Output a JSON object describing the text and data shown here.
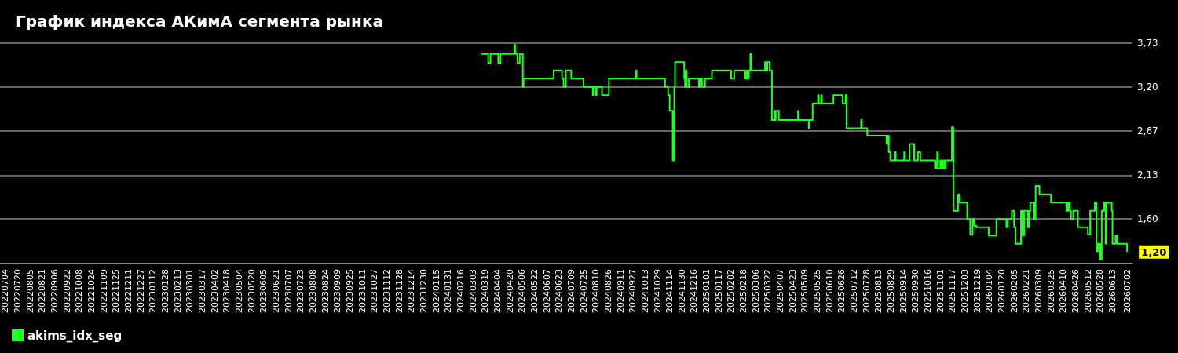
{
  "chart_data": {
    "type": "step",
    "title": "График индекса АКимА сегмента рынка",
    "xlim": [
      "2022-06-27",
      "2026-07-09"
    ],
    "xticks": [
      {
        "value": "2022-07-04",
        "label": "20220704"
      },
      {
        "value": "2022-07-20",
        "label": "20220720"
      },
      {
        "value": "2022-08-05",
        "label": "20220805"
      },
      {
        "value": "2022-08-21",
        "label": "20220821"
      },
      {
        "value": "2022-09-06",
        "label": "20220906"
      },
      {
        "value": "2022-09-22",
        "label": "20220922"
      },
      {
        "value": "2022-10-08",
        "label": "20221008"
      },
      {
        "value": "2022-10-24",
        "label": "20221024"
      },
      {
        "value": "2022-11-09",
        "label": "20221109"
      },
      {
        "value": "2022-11-25",
        "label": "20221125"
      },
      {
        "value": "2022-12-11",
        "label": "20221211"
      },
      {
        "value": "2022-12-27",
        "label": "20221227"
      },
      {
        "value": "2023-01-12",
        "label": "20230112"
      },
      {
        "value": "2023-01-28",
        "label": "20230128"
      },
      {
        "value": "2023-02-13",
        "label": "20230213"
      },
      {
        "value": "2023-03-01",
        "label": "20230301"
      },
      {
        "value": "2023-03-17",
        "label": "20230317"
      },
      {
        "value": "2023-04-02",
        "label": "20230402"
      },
      {
        "value": "2023-04-18",
        "label": "20230418"
      },
      {
        "value": "2023-05-04",
        "label": "20230504"
      },
      {
        "value": "2023-05-20",
        "label": "20230520"
      },
      {
        "value": "2023-06-05",
        "label": "20230605"
      },
      {
        "value": "2023-06-21",
        "label": "20230621"
      },
      {
        "value": "2023-07-07",
        "label": "20230707"
      },
      {
        "value": "2023-07-23",
        "label": "20230723"
      },
      {
        "value": "2023-08-08",
        "label": "20230808"
      },
      {
        "value": "2023-08-24",
        "label": "20230824"
      },
      {
        "value": "2023-09-09",
        "label": "20230909"
      },
      {
        "value": "2023-09-25",
        "label": "20230925"
      },
      {
        "value": "2023-10-11",
        "label": "20231011"
      },
      {
        "value": "2023-10-27",
        "label": "20231027"
      },
      {
        "value": "2023-11-12",
        "label": "20231112"
      },
      {
        "value": "2023-11-28",
        "label": "20231128"
      },
      {
        "value": "2023-12-14",
        "label": "20231214"
      },
      {
        "value": "2023-12-30",
        "label": "20231230"
      },
      {
        "value": "2024-01-15",
        "label": "20240115"
      },
      {
        "value": "2024-01-31",
        "label": "20240131"
      },
      {
        "value": "2024-02-16",
        "label": "20240216"
      },
      {
        "value": "2024-03-03",
        "label": "20240303"
      },
      {
        "value": "2024-03-19",
        "label": "20240319"
      },
      {
        "value": "2024-04-04",
        "label": "20240404"
      },
      {
        "value": "2024-04-20",
        "label": "20240420"
      },
      {
        "value": "2024-05-06",
        "label": "20240506"
      },
      {
        "value": "2024-05-22",
        "label": "20240522"
      },
      {
        "value": "2024-06-07",
        "label": "20240607"
      },
      {
        "value": "2024-06-23",
        "label": "20240623"
      },
      {
        "value": "2024-07-09",
        "label": "20240709"
      },
      {
        "value": "2024-07-25",
        "label": "20240725"
      },
      {
        "value": "2024-08-10",
        "label": "20240810"
      },
      {
        "value": "2024-08-26",
        "label": "20240826"
      },
      {
        "value": "2024-09-11",
        "label": "20240911"
      },
      {
        "value": "2024-09-27",
        "label": "20240927"
      },
      {
        "value": "2024-10-13",
        "label": "20241013"
      },
      {
        "value": "2024-10-29",
        "label": "20241029"
      },
      {
        "value": "2024-11-14",
        "label": "20241114"
      },
      {
        "value": "2024-11-30",
        "label": "20241130"
      },
      {
        "value": "2024-12-16",
        "label": "20241216"
      },
      {
        "value": "2025-01-01",
        "label": "20250101"
      },
      {
        "value": "2025-01-17",
        "label": "20250117"
      },
      {
        "value": "2025-02-02",
        "label": "20250202"
      },
      {
        "value": "2025-02-18",
        "label": "20250218"
      },
      {
        "value": "2025-03-06",
        "label": "20250306"
      },
      {
        "value": "2025-03-22",
        "label": "20250322"
      },
      {
        "value": "2025-04-07",
        "label": "20250407"
      },
      {
        "value": "2025-04-23",
        "label": "20250423"
      },
      {
        "value": "2025-05-09",
        "label": "20250509"
      },
      {
        "value": "2025-05-25",
        "label": "20250525"
      },
      {
        "value": "2025-06-10",
        "label": "20250610"
      },
      {
        "value": "2025-06-26",
        "label": "20250626"
      },
      {
        "value": "2025-07-12",
        "label": "20250712"
      },
      {
        "value": "2025-07-28",
        "label": "20250728"
      },
      {
        "value": "2025-08-13",
        "label": "20250813"
      },
      {
        "value": "2025-08-29",
        "label": "20250829"
      },
      {
        "value": "2025-09-14",
        "label": "20250914"
      },
      {
        "value": "2025-09-30",
        "label": "20250930"
      },
      {
        "value": "2025-10-16",
        "label": "20251016"
      },
      {
        "value": "2025-11-01",
        "label": "20251101"
      },
      {
        "value": "2025-11-17",
        "label": "20251117"
      },
      {
        "value": "2025-12-03",
        "label": "20251203"
      },
      {
        "value": "2025-12-19",
        "label": "20251219"
      },
      {
        "value": "2026-01-04",
        "label": "20260104"
      },
      {
        "value": "2026-01-20",
        "label": "20260120"
      },
      {
        "value": "2026-02-05",
        "label": "20260205"
      },
      {
        "value": "2026-02-21",
        "label": "20260221"
      },
      {
        "value": "2026-03-09",
        "label": "20260309"
      },
      {
        "value": "2026-03-25",
        "label": "20260325"
      },
      {
        "value": "2026-04-10",
        "label": "20260410"
      },
      {
        "value": "2026-04-26",
        "label": "20260426"
      },
      {
        "value": "2026-05-12",
        "label": "20260512"
      },
      {
        "value": "2026-05-28",
        "label": "20260528"
      },
      {
        "value": "2026-06-13",
        "label": "20260613"
      },
      {
        "value": "2026-07-02",
        "label": "20260702"
      }
    ],
    "ylim": [
      1.07,
      3.73
    ],
    "yticks": [
      {
        "value": 1.6,
        "label": "1,60"
      },
      {
        "value": 2.13,
        "label": "2,13"
      },
      {
        "value": 2.67,
        "label": "2,67"
      },
      {
        "value": 3.2,
        "label": "3,20"
      },
      {
        "value": 3.73,
        "label": "3,73"
      }
    ],
    "grid": "y",
    "legend": "bottom left",
    "marker": "none",
    "line_style": "solid",
    "annotations": [
      {
        "text": "1,20",
        "x": "2026-07-02",
        "y": 1.2
      }
    ],
    "series": [
      {
        "name": "akims_idx_seg",
        "color": "#22ff22",
        "x": [
          "2024-03-14",
          "2024-03-23",
          "2024-03-26",
          "2024-04-05",
          "2024-04-08",
          "2024-04-26",
          "2024-04-27",
          "2024-04-30",
          "2024-05-03",
          "2024-05-07",
          "2024-05-08",
          "2024-06-16",
          "2024-06-27",
          "2024-06-29",
          "2024-07-02",
          "2024-07-09",
          "2024-07-25",
          "2024-08-06",
          "2024-08-07",
          "2024-08-10",
          "2024-08-11",
          "2024-08-18",
          "2024-08-27",
          "2024-10-01",
          "2024-10-02",
          "2024-11-08",
          "2024-11-12",
          "2024-11-14",
          "2024-11-18",
          "2024-11-20",
          "2024-11-21",
          "2024-12-03",
          "2024-12-04",
          "2024-12-05",
          "2024-12-06",
          "2024-12-09",
          "2024-12-22",
          "2024-12-24",
          "2024-12-26",
          "2024-12-30",
          "2025-01-08",
          "2025-02-02",
          "2025-02-06",
          "2025-02-20",
          "2025-02-22",
          "2025-02-23",
          "2025-02-25",
          "2025-02-27",
          "2025-02-28",
          "2025-03-18",
          "2025-03-20",
          "2025-03-21",
          "2025-03-24",
          "2025-03-27",
          "2025-03-30",
          "2025-03-31",
          "2025-04-01",
          "2025-04-05",
          "2025-04-30",
          "2025-05-01",
          "2025-05-14",
          "2025-05-15",
          "2025-05-19",
          "2025-05-26",
          "2025-05-27",
          "2025-05-30",
          "2025-05-31",
          "2025-06-15",
          "2025-06-27",
          "2025-07-01",
          "2025-07-02",
          "2025-07-21",
          "2025-07-22",
          "2025-07-29",
          "2025-08-23",
          "2025-08-25",
          "2025-08-26",
          "2025-08-28",
          "2025-09-03",
          "2025-09-04",
          "2025-09-15",
          "2025-09-16",
          "2025-09-22",
          "2025-09-28",
          "2025-10-03",
          "2025-10-06",
          "2025-10-25",
          "2025-10-27",
          "2025-10-28",
          "2025-10-29",
          "2025-11-01",
          "2025-11-03",
          "2025-11-05",
          "2025-11-07",
          "2025-11-08",
          "2025-11-16",
          "2025-11-18",
          "2025-11-24",
          "2025-11-26",
          "2025-12-06",
          "2025-12-10",
          "2025-12-13",
          "2025-12-15",
          "2025-12-18",
          "2026-01-03",
          "2026-01-13",
          "2026-01-26",
          "2026-01-28",
          "2026-02-02",
          "2026-02-05",
          "2026-02-07",
          "2026-02-14",
          "2026-02-16",
          "2026-02-18",
          "2026-02-23",
          "2026-02-25",
          "2026-02-26",
          "2026-03-03",
          "2026-03-05",
          "2026-03-10",
          "2026-03-25",
          "2026-04-14",
          "2026-04-16",
          "2026-04-18",
          "2026-04-20",
          "2026-04-23",
          "2026-04-29",
          "2026-05-12",
          "2026-05-15",
          "2026-05-21",
          "2026-05-23",
          "2026-05-25",
          "2026-05-28",
          "2026-05-30",
          "2026-06-02",
          "2026-06-04",
          "2026-06-05",
          "2026-06-12",
          "2026-06-13",
          "2026-06-17",
          "2026-06-19",
          "2026-07-02"
        ],
        "values": [
          3.6,
          3.49,
          3.6,
          3.49,
          3.6,
          3.71,
          3.6,
          3.49,
          3.6,
          3.2,
          3.3,
          3.4,
          3.3,
          3.2,
          3.4,
          3.3,
          3.2,
          3.1,
          3.2,
          3.1,
          3.2,
          3.1,
          3.3,
          3.4,
          3.3,
          3.2,
          3.1,
          2.91,
          2.31,
          3.2,
          3.5,
          3.3,
          3.2,
          3.4,
          3.2,
          3.3,
          3.2,
          3.3,
          3.2,
          3.3,
          3.4,
          3.3,
          3.4,
          3.3,
          3.4,
          3.3,
          3.4,
          3.6,
          3.4,
          3.5,
          3.4,
          3.5,
          3.4,
          2.8,
          2.91,
          2.8,
          2.91,
          2.8,
          2.91,
          2.8,
          2.7,
          2.8,
          3.0,
          3.1,
          3.0,
          3.1,
          3.0,
          3.1,
          3.0,
          3.1,
          2.7,
          2.8,
          2.7,
          2.61,
          2.51,
          2.61,
          2.41,
          2.31,
          2.41,
          2.31,
          2.41,
          2.31,
          2.51,
          2.31,
          2.41,
          2.31,
          2.21,
          2.31,
          2.41,
          2.21,
          2.31,
          2.21,
          2.31,
          2.21,
          2.31,
          2.71,
          1.7,
          1.9,
          1.8,
          1.6,
          1.41,
          1.6,
          1.52,
          1.5,
          1.4,
          1.6,
          1.5,
          1.6,
          1.7,
          1.5,
          1.3,
          1.7,
          1.4,
          1.7,
          1.5,
          1.7,
          1.8,
          1.6,
          2.0,
          1.9,
          1.8,
          1.7,
          1.8,
          1.7,
          1.6,
          1.7,
          1.5,
          1.41,
          1.7,
          1.8,
          1.21,
          1.3,
          1.11,
          1.7,
          1.8,
          1.3,
          1.8,
          1.7,
          1.3,
          1.4,
          1.3,
          1.2
        ]
      }
    ]
  }
}
